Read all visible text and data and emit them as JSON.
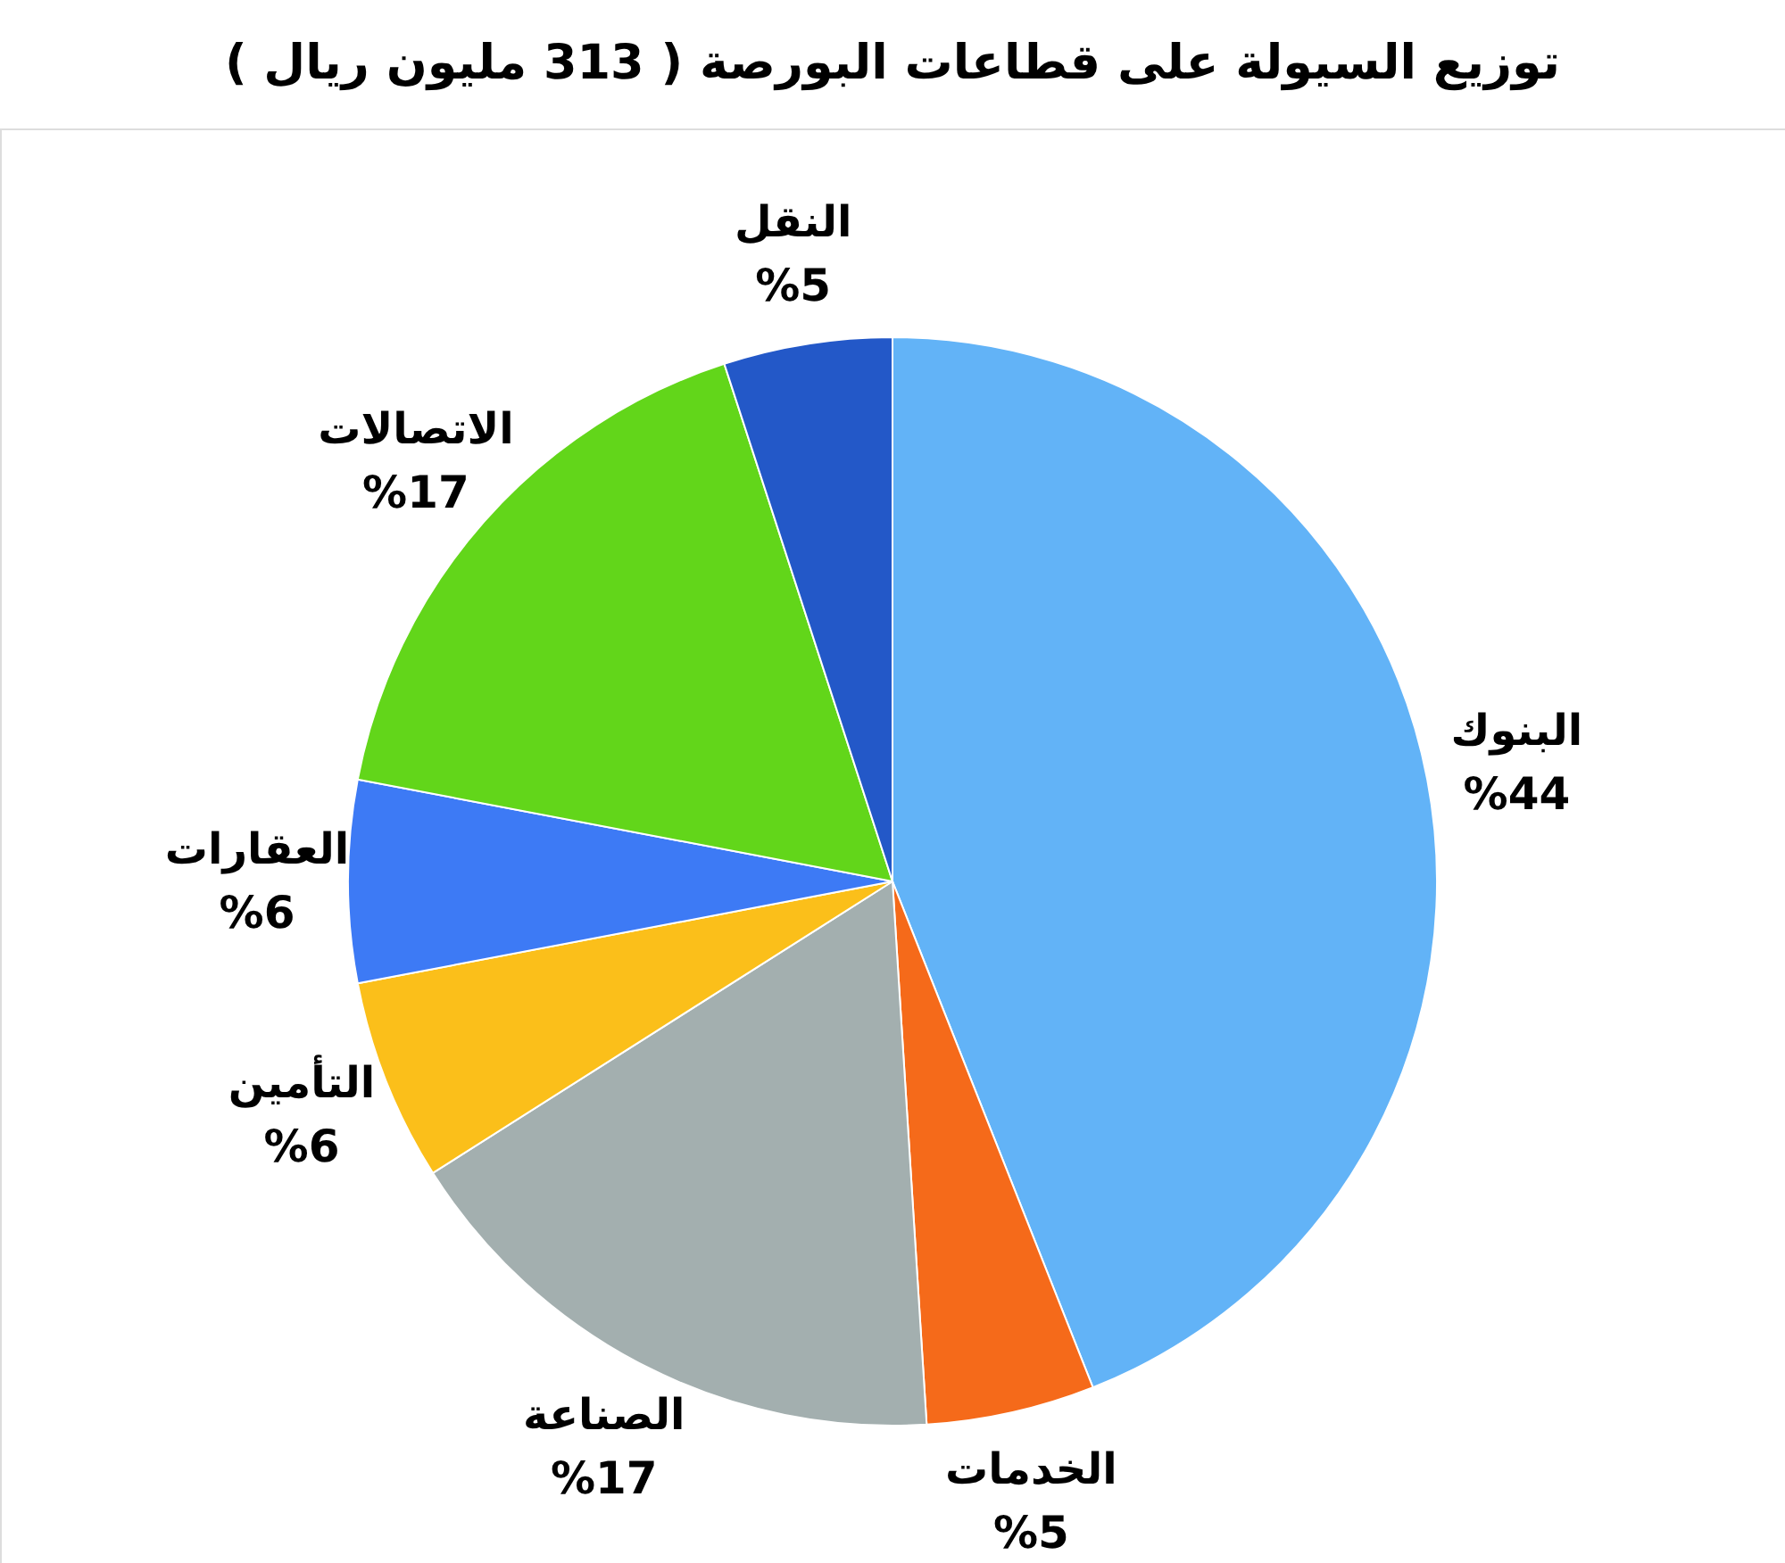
{
  "chart_data": {
    "type": "pie",
    "title": "توزيع السيولة على قطاعات البورصة ( 313 مليون ريال )",
    "categories": [
      "البنوك",
      "الخدمات",
      "الصناعة",
      "التأمين",
      "العقارات",
      "الاتصالات",
      "النقل"
    ],
    "values": [
      44,
      5,
      17,
      6,
      6,
      17,
      5
    ],
    "colors": [
      "#62b3f7",
      "#f56a1a",
      "#a3afaf",
      "#fbbf1a",
      "#3d7af5",
      "#62d61a",
      "#2358c8"
    ],
    "value_labels": [
      "%44",
      "%5",
      "%17",
      "%6",
      "%6",
      "%17",
      "%5"
    ]
  }
}
